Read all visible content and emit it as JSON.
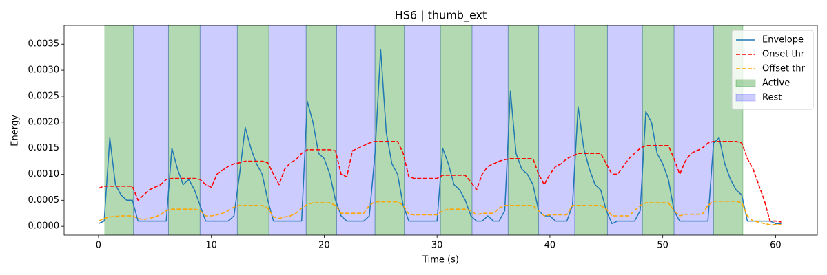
{
  "chart_data": {
    "type": "line",
    "title": "HS6 | thumb_ext",
    "x_label": "Time (s)",
    "y_label": "Energy",
    "xlim": [
      -3.05,
      63.7
    ],
    "ylim": [
      -0.00017,
      0.00386
    ],
    "xticks": [
      0,
      10,
      20,
      30,
      40,
      50,
      60
    ],
    "yticks": [
      {
        "value": 0,
        "label": "0.0000"
      },
      {
        "value": 0.0005,
        "label": "0.0005"
      },
      {
        "value": 0.001,
        "label": "0.0010"
      },
      {
        "value": 0.0015,
        "label": "0.0015"
      },
      {
        "value": 0.002,
        "label": "0.0020"
      },
      {
        "value": 0.0025,
        "label": "0.0025"
      },
      {
        "value": 0.003,
        "label": "0.0030"
      },
      {
        "value": 0.0035,
        "label": "0.0035"
      }
    ],
    "grid": false,
    "legend": "upper right",
    "x": [
      0,
      0.5,
      1,
      1.5,
      2,
      2.5,
      3,
      3.5,
      4,
      4.5,
      5,
      5.5,
      6,
      6.5,
      7,
      7.5,
      8,
      8.5,
      9,
      9.5,
      10,
      10.5,
      11,
      11.5,
      12,
      12.5,
      13,
      13.5,
      14,
      14.5,
      15,
      15.5,
      16,
      16.5,
      17,
      17.5,
      18,
      18.5,
      19,
      19.5,
      20,
      20.5,
      21,
      21.5,
      22,
      22.5,
      23,
      23.5,
      24,
      24.5,
      25,
      25.5,
      26,
      26.5,
      27,
      27.5,
      28,
      28.5,
      29,
      29.5,
      30,
      30.5,
      31,
      31.5,
      32,
      32.5,
      33,
      33.5,
      34,
      34.5,
      35,
      35.5,
      36,
      36.5,
      37,
      37.5,
      38,
      38.5,
      39,
      39.5,
      40,
      40.5,
      41,
      41.5,
      42,
      42.5,
      43,
      43.5,
      44,
      44.5,
      45,
      45.5,
      46,
      46.5,
      47,
      47.5,
      48,
      48.5,
      49,
      49.5,
      50,
      50.5,
      51,
      51.5,
      52,
      52.5,
      53,
      53.5,
      54,
      54.5,
      55,
      55.5,
      56,
      56.5,
      57,
      57.5,
      58,
      58.5,
      59,
      59.5,
      60,
      60.5
    ],
    "series": [
      {
        "name": "Envelope",
        "color": "#1f77b4",
        "linestyle": "solid",
        "values": [
          5e-05,
          0.0001,
          0.0017,
          0.0008,
          0.0006,
          0.0005,
          0.0005,
          0.0001,
          0.0001,
          0.0001,
          0.0001,
          0.0001,
          0.0001,
          0.0015,
          0.0011,
          0.0008,
          0.0009,
          0.0007,
          0.0004,
          0.0001,
          0.0001,
          0.0001,
          0.0001,
          0.0001,
          0.0002,
          0.001,
          0.0019,
          0.0015,
          0.0012,
          0.001,
          0.0005,
          0.0001,
          0.0001,
          0.0001,
          0.0001,
          0.0001,
          0.0001,
          0.0024,
          0.002,
          0.0014,
          0.0013,
          0.001,
          0.0005,
          0.0002,
          0.0001,
          0.0001,
          0.0001,
          0.0001,
          0.0002,
          0.0014,
          0.0034,
          0.0018,
          0.0012,
          0.001,
          0.0004,
          0.0001,
          0.0001,
          0.0001,
          0.0001,
          0.0001,
          0.0001,
          0.0015,
          0.0012,
          0.0008,
          0.0007,
          0.0005,
          0.0002,
          0.0001,
          0.0001,
          0.0002,
          0.0001,
          0.0001,
          0.0003,
          0.0026,
          0.0014,
          0.0011,
          0.001,
          0.0008,
          0.0003,
          0.0002,
          0.0002,
          0.0001,
          0.0001,
          0.0001,
          0.0004,
          0.0023,
          0.0015,
          0.0011,
          0.0008,
          0.0007,
          0.0003,
          5e-05,
          0.0001,
          0.0001,
          0.0001,
          0.0001,
          0.0003,
          0.0022,
          0.002,
          0.0014,
          0.0012,
          0.0009,
          0.0003,
          0.0001,
          0.0001,
          0.0001,
          0.0001,
          0.0001,
          0.0001,
          0.0016,
          0.0017,
          0.0012,
          0.0009,
          0.0007,
          0.0006,
          0.0001,
          0.0001,
          0.0001,
          0.0001,
          0.0001,
          5e-05,
          5e-05
        ]
      },
      {
        "name": "Onset thr",
        "color": "#ff0000",
        "linestyle": "dashed",
        "values": [
          0.00073,
          0.00077,
          0.00077,
          0.00077,
          0.00077,
          0.00077,
          0.00077,
          0.0005,
          0.0006,
          0.0007,
          0.00075,
          0.0008,
          0.0009,
          0.00092,
          0.00092,
          0.00092,
          0.00092,
          0.00092,
          0.0009,
          0.0008,
          0.00075,
          0.001,
          0.00108,
          0.00115,
          0.0012,
          0.00122,
          0.00125,
          0.00125,
          0.00125,
          0.00125,
          0.00122,
          0.001,
          0.0008,
          0.0011,
          0.00122,
          0.00128,
          0.0014,
          0.00147,
          0.00147,
          0.00147,
          0.00147,
          0.00147,
          0.00145,
          0.001,
          0.00095,
          0.00145,
          0.0015,
          0.00155,
          0.0016,
          0.00163,
          0.00163,
          0.00163,
          0.00163,
          0.00163,
          0.0014,
          0.00095,
          0.00092,
          0.00092,
          0.00092,
          0.00092,
          0.00092,
          0.00098,
          0.00098,
          0.00098,
          0.00098,
          0.00098,
          0.00085,
          0.0007,
          0.001,
          0.00115,
          0.0012,
          0.00125,
          0.00128,
          0.0013,
          0.0013,
          0.0013,
          0.0013,
          0.0013,
          0.001,
          0.0008,
          0.001,
          0.00115,
          0.0012,
          0.0013,
          0.00135,
          0.0014,
          0.0014,
          0.0014,
          0.0014,
          0.0014,
          0.0012,
          0.001,
          0.001,
          0.00115,
          0.0013,
          0.0014,
          0.0015,
          0.00155,
          0.00155,
          0.00155,
          0.00155,
          0.00155,
          0.0013,
          0.001,
          0.00125,
          0.0014,
          0.00145,
          0.0015,
          0.0016,
          0.00163,
          0.00163,
          0.00163,
          0.00163,
          0.00163,
          0.0016,
          0.0013,
          0.0011,
          0.0008,
          0.0005,
          0.0001,
          0.0001,
          8e-05
        ]
      },
      {
        "name": "Offset thr",
        "color": "#ffa500",
        "linestyle": "dashed",
        "values": [
          0.0001,
          0.00015,
          0.00018,
          0.00019,
          0.0002,
          0.0002,
          0.0002,
          0.00015,
          0.00013,
          0.00015,
          0.00018,
          0.00022,
          0.0003,
          0.00033,
          0.00033,
          0.00033,
          0.00033,
          0.00033,
          0.0003,
          0.0002,
          0.0002,
          0.00022,
          0.00025,
          0.0003,
          0.00037,
          0.0004,
          0.0004,
          0.0004,
          0.0004,
          0.0004,
          0.00035,
          0.00018,
          0.00015,
          0.00018,
          0.0002,
          0.00025,
          0.00035,
          0.00042,
          0.00045,
          0.00045,
          0.00045,
          0.00045,
          0.0004,
          0.00025,
          0.00025,
          0.00025,
          0.00025,
          0.00025,
          0.0004,
          0.00047,
          0.00047,
          0.00047,
          0.00047,
          0.00047,
          0.0004,
          0.00023,
          0.00022,
          0.00022,
          0.00022,
          0.00022,
          0.00022,
          0.0003,
          0.00033,
          0.00033,
          0.00033,
          0.00033,
          0.0003,
          0.00022,
          0.00025,
          0.00025,
          0.00025,
          0.00035,
          0.0004,
          0.0004,
          0.0004,
          0.0004,
          0.0004,
          0.0004,
          0.0003,
          0.0002,
          0.00022,
          0.00022,
          0.00022,
          0.00022,
          0.0004,
          0.0004,
          0.0004,
          0.0004,
          0.0004,
          0.0004,
          0.00033,
          0.0002,
          0.0002,
          0.0002,
          0.0002,
          0.0003,
          0.0004,
          0.00045,
          0.00045,
          0.00045,
          0.00045,
          0.00045,
          0.0003,
          0.0002,
          0.00023,
          0.00023,
          0.00023,
          0.00023,
          0.0004,
          0.00048,
          0.00048,
          0.00048,
          0.00048,
          0.00048,
          0.00045,
          0.0002,
          0.0001,
          8e-05,
          5e-05,
          3e-05,
          3e-05,
          3e-05
        ]
      }
    ],
    "spans": [
      {
        "name": "Active",
        "color": "rgba(0,128,0,0.3)",
        "intervals": [
          [
            0.55,
            3.1
          ],
          [
            6.2,
            9.0
          ],
          [
            12.3,
            15.1
          ],
          [
            18.4,
            21.1
          ],
          [
            24.5,
            27.1
          ],
          [
            30.3,
            33.1
          ],
          [
            36.3,
            39.0
          ],
          [
            42.2,
            45.1
          ],
          [
            48.2,
            51.0
          ],
          [
            54.5,
            57.1
          ]
        ]
      },
      {
        "name": "Rest",
        "color": "rgba(0,0,255,0.2)",
        "intervals": [
          [
            3.1,
            6.2
          ],
          [
            9.0,
            12.3
          ],
          [
            15.1,
            18.4
          ],
          [
            21.1,
            24.5
          ],
          [
            27.1,
            30.3
          ],
          [
            33.1,
            36.3
          ],
          [
            39.0,
            42.2
          ],
          [
            45.1,
            48.2
          ],
          [
            51.0,
            54.5
          ]
        ]
      }
    ]
  }
}
